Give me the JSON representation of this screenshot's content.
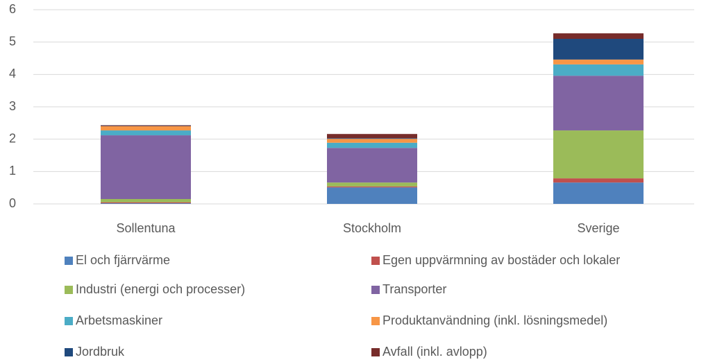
{
  "chart_data": {
    "type": "stacked_bar",
    "categories": [
      "Sollentuna",
      "Stockholm",
      "Sverige"
    ],
    "series": [
      {
        "name": "El och fjärrvärme",
        "color": "#4f81bd",
        "values": [
          0.02,
          0.51,
          0.66
        ]
      },
      {
        "name": "Egen uppvärmning av bostäder och lokaler",
        "color": "#c0504d",
        "values": [
          0.03,
          0.03,
          0.13
        ]
      },
      {
        "name": "Industri (energi och processer)",
        "color": "#9bbb59",
        "values": [
          0.1,
          0.12,
          1.48
        ]
      },
      {
        "name": "Transporter",
        "color": "#8064a2",
        "values": [
          1.97,
          1.07,
          1.69
        ]
      },
      {
        "name": "Arbetsmaskiner",
        "color": "#4bacc6",
        "values": [
          0.15,
          0.16,
          0.35
        ]
      },
      {
        "name": "Produktanvändning (inkl. lösningsmedel)",
        "color": "#f79646",
        "values": [
          0.13,
          0.12,
          0.15
        ]
      },
      {
        "name": "Jordbruk",
        "color": "#1f497d",
        "values": [
          0.01,
          0.02,
          0.64
        ]
      },
      {
        "name": "Avfall (inkl. avlopp)",
        "color": "#772c2a",
        "values": [
          0.02,
          0.13,
          0.17
        ]
      }
    ],
    "ylim": [
      0,
      6
    ],
    "yticks": [
      0,
      1,
      2,
      3,
      4,
      5,
      6
    ],
    "grid": true,
    "legend": "bottom"
  }
}
